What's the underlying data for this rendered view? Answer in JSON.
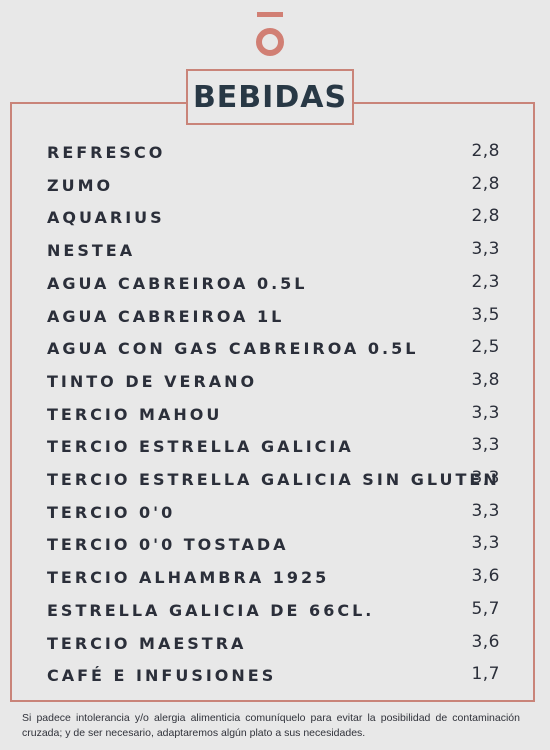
{
  "title": "BEBIDAS",
  "logo": {
    "icon": "o-macron-logo",
    "color": "#d17f74"
  },
  "items": [
    {
      "name": "REFRESCO",
      "price": "2,8"
    },
    {
      "name": "ZUMO",
      "price": "2,8"
    },
    {
      "name": "AQUARIUS",
      "price": "2,8"
    },
    {
      "name": "NESTEA",
      "price": "3,3"
    },
    {
      "name": "AGUA CABREIROA 0.5L",
      "price": "2,3"
    },
    {
      "name": "AGUA CABREIROA 1L",
      "price": "3,5"
    },
    {
      "name": "AGUA CON GAS CABREIROA 0.5L",
      "price": "2,5"
    },
    {
      "name": "TINTO DE VERANO",
      "price": "3,8"
    },
    {
      "name": "TERCIO MAHOU",
      "price": "3,3"
    },
    {
      "name": "TERCIO ESTRELLA GALICIA",
      "price": "3,3"
    },
    {
      "name": "TERCIO ESTRELLA GALICIA SIN GLUTEN",
      "price": "3,3"
    },
    {
      "name": "TERCIO 0'0",
      "price": "3,3"
    },
    {
      "name": "TERCIO 0'0 TOSTADA",
      "price": "3,3"
    },
    {
      "name": "TERCIO ALHAMBRA 1925",
      "price": "3,6"
    },
    {
      "name": "ESTRELLA GALICIA DE 66CL.",
      "price": "5,7"
    },
    {
      "name": "TERCIO MAESTRA",
      "price": "3,6"
    },
    {
      "name": "CAFÉ E INFUSIONES",
      "price": "1,7"
    }
  ],
  "footer": "Si padece intolerancia y/o alergia alimenticia comuníquelo para evitar la posibilidad de contaminación cruzada; y de ser necesario, adaptaremos algún plato a sus necesidades."
}
